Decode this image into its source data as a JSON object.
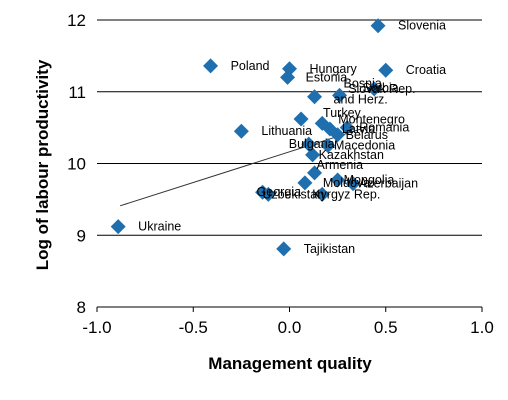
{
  "chart_data": {
    "type": "scatter",
    "title": "",
    "xlabel": "Management quality",
    "ylabel": "Log of labour productivity",
    "xlim": [
      -1.0,
      1.0
    ],
    "ylim": [
      8,
      12
    ],
    "xticks": [
      "-1.0",
      "-0.5",
      "0.0",
      "0.5",
      "1.0"
    ],
    "yticks": [
      "8",
      "9",
      "10",
      "11",
      "12"
    ],
    "grid": "horizontal",
    "marker_color": "#1f6fae",
    "points": [
      {
        "label": "Slovenia",
        "x": 0.46,
        "y": 11.92
      },
      {
        "label": "Poland",
        "x": -0.41,
        "y": 11.36
      },
      {
        "label": "Hungary",
        "x": 0.0,
        "y": 11.32
      },
      {
        "label": "Estonia",
        "x": -0.01,
        "y": 11.2
      },
      {
        "label": "Croatia",
        "x": 0.5,
        "y": 11.3
      },
      {
        "label": "Bosnia and Herz.",
        "x": 0.26,
        "y": 10.95
      },
      {
        "label": "Serbia",
        "x": 0.13,
        "y": 10.93
      },
      {
        "label": "Slovak Rep.",
        "x": 0.44,
        "y": 11.04
      },
      {
        "label": "Turkey",
        "x": 0.06,
        "y": 10.62
      },
      {
        "label": "Montenegro",
        "x": 0.17,
        "y": 10.56
      },
      {
        "label": "Latvia",
        "x": 0.21,
        "y": 10.48
      },
      {
        "label": "Romania",
        "x": 0.3,
        "y": 10.5
      },
      {
        "label": "Lithuania",
        "x": -0.25,
        "y": 10.45
      },
      {
        "label": "Belarus",
        "x": 0.25,
        "y": 10.4
      },
      {
        "label": "Bulgaria",
        "x": 0.1,
        "y": 10.27
      },
      {
        "label": "Macedonia",
        "x": 0.2,
        "y": 10.25
      },
      {
        "label": "Kazakhstan",
        "x": 0.12,
        "y": 10.12
      },
      {
        "label": "Armenia",
        "x": 0.13,
        "y": 9.87
      },
      {
        "label": "Mongolia",
        "x": 0.25,
        "y": 9.77
      },
      {
        "label": "Moldova",
        "x": 0.08,
        "y": 9.73
      },
      {
        "label": "Azerbaijan",
        "x": 0.33,
        "y": 9.72
      },
      {
        "label": "Georgia",
        "x": -0.14,
        "y": 9.6
      },
      {
        "label": "Uzbekistan",
        "x": -0.11,
        "y": 9.57
      },
      {
        "label": "Kyrgyz Rep.",
        "x": 0.17,
        "y": 9.57
      },
      {
        "label": "Ukraine",
        "x": -0.89,
        "y": 9.12
      },
      {
        "label": "Tajikistan",
        "x": -0.03,
        "y": 8.81
      }
    ],
    "trendline": {
      "x": [
        -0.88,
        0.37
      ],
      "y": [
        9.41,
        10.48
      ]
    }
  }
}
